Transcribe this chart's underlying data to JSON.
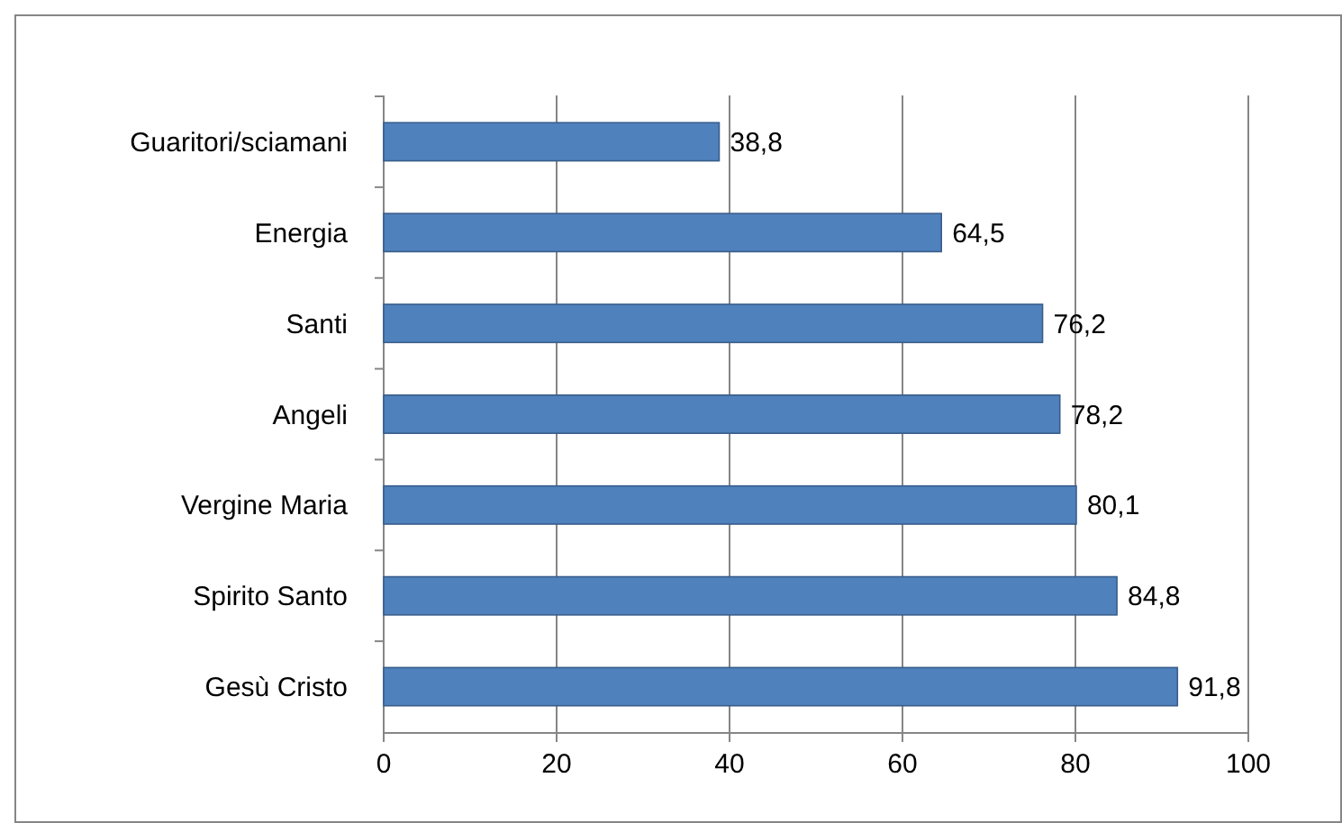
{
  "chart_data": {
    "type": "bar",
    "orientation": "horizontal",
    "categories": [
      "Guaritori/sciamani",
      "Energia",
      "Santi",
      "Angeli",
      "Vergine Maria",
      "Spirito Santo",
      "Gesù Cristo"
    ],
    "values": [
      38.8,
      64.5,
      76.2,
      78.2,
      80.1,
      84.8,
      91.8
    ],
    "value_labels": [
      "38,8",
      "64,5",
      "76,2",
      "78,2",
      "80,1",
      "84,8",
      "91,8"
    ],
    "color": "#4f81bd",
    "xlim": [
      0,
      100
    ],
    "xticks": [
      0,
      20,
      40,
      60,
      80,
      100
    ],
    "grid": "x"
  }
}
